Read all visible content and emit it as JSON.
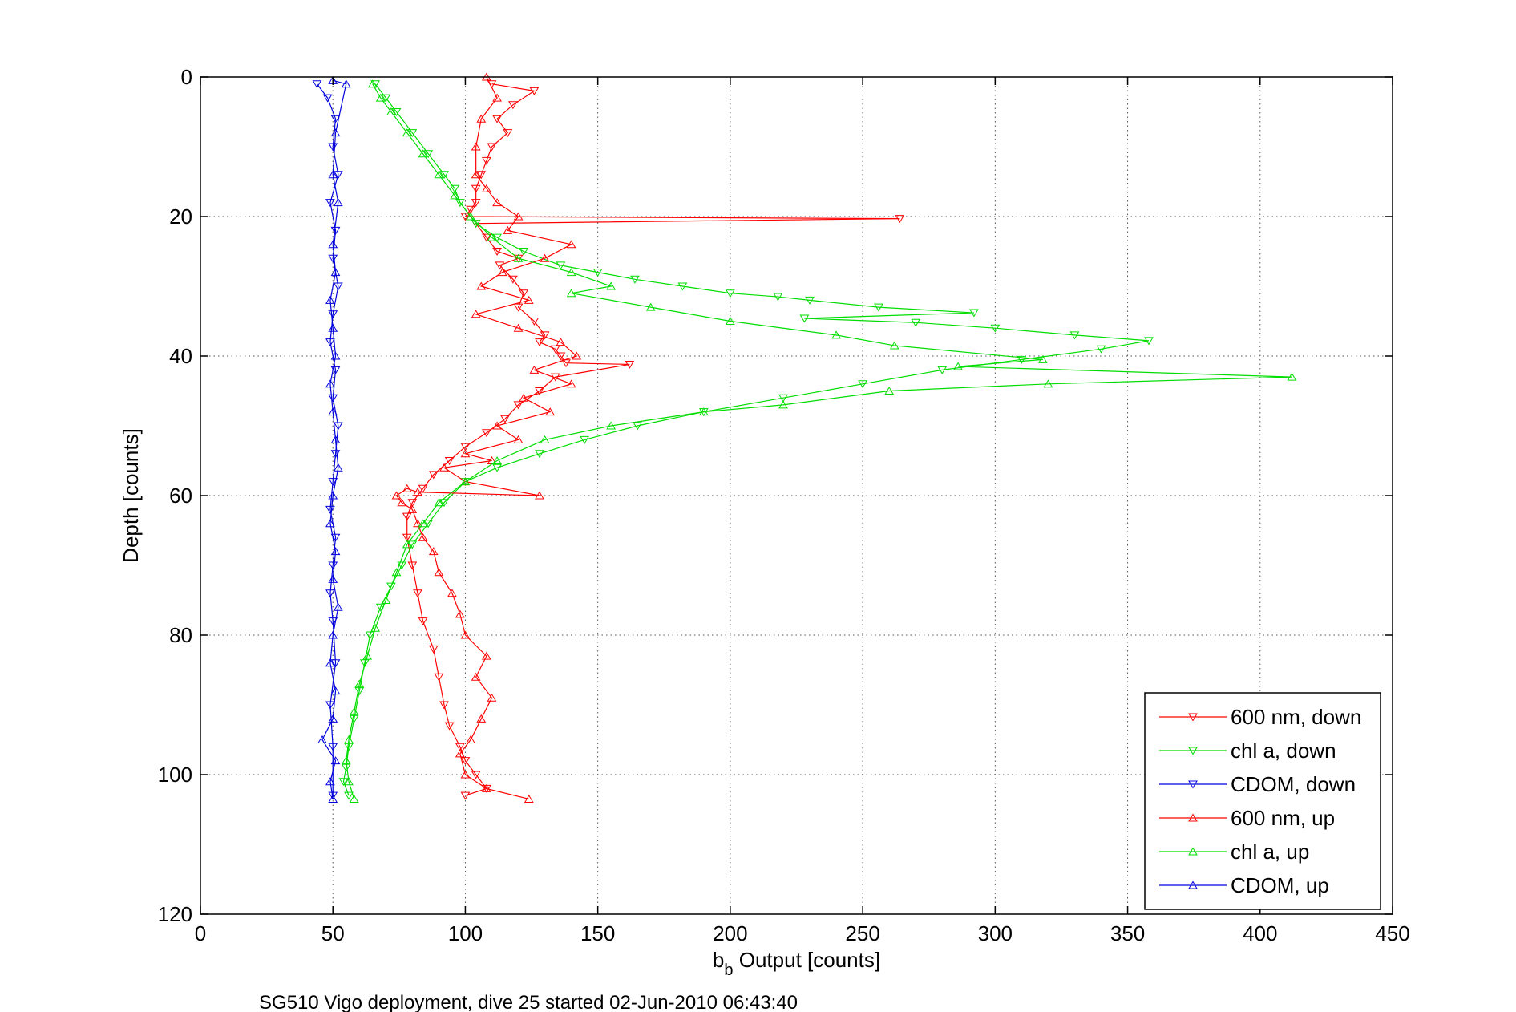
{
  "chart_data": {
    "type": "line",
    "xlabel_main": "b",
    "xlabel_sub": "b",
    "xlabel_rest": " Output [counts]",
    "ylabel": "Depth [counts]",
    "caption": "SG510 Vigo deployment, dive 25 started 02-Jun-2010 06:43:40",
    "xlim": [
      0,
      450
    ],
    "ylim": [
      0,
      120
    ],
    "y_reversed": true,
    "grid": true,
    "legend_position": "bottom-right",
    "xticks": [
      "0",
      "50",
      "100",
      "150",
      "200",
      "250",
      "300",
      "350",
      "400",
      "450"
    ],
    "yticks": [
      "0",
      "20",
      "40",
      "60",
      "80",
      "100",
      "120"
    ],
    "series": [
      {
        "name": "600 nm, down",
        "color": "#ff0000",
        "marker": "triangle-down",
        "x": [
          110,
          126,
          118,
          112,
          116,
          110,
          108,
          106,
          104,
          104,
          102,
          100,
          264,
          104,
          108,
          112,
          120,
          113,
          118,
          122,
          120,
          126,
          130,
          128,
          134,
          136,
          138,
          162,
          134,
          128,
          120,
          115,
          108,
          100,
          94,
          88,
          84,
          80,
          78,
          78,
          80,
          82,
          84,
          88,
          90,
          92,
          94,
          98,
          100,
          104,
          108,
          100
        ],
        "y": [
          1,
          2,
          4,
          6,
          8,
          10,
          12,
          14,
          16,
          18,
          19,
          20,
          20.3,
          21,
          23,
          25,
          26,
          27,
          29,
          31,
          33,
          35,
          37,
          38,
          39,
          40,
          41,
          41.2,
          43,
          45,
          47,
          49,
          51,
          53,
          55,
          57,
          59,
          61,
          63,
          66,
          70,
          74,
          78,
          82,
          86,
          90,
          93,
          96,
          98,
          100,
          102,
          103
        ]
      },
      {
        "name": "chl a, down",
        "color": "#00dd00",
        "marker": "triangle-down",
        "x": [
          66,
          70,
          74,
          80,
          86,
          92,
          96,
          98,
          104,
          112,
          122,
          136,
          150,
          164,
          182,
          200,
          218,
          230,
          256,
          292,
          228,
          270,
          300,
          330,
          358,
          340,
          310,
          280,
          250,
          220,
          190,
          165,
          145,
          128,
          112,
          100,
          92,
          86,
          80,
          76,
          72,
          68,
          64,
          62,
          60,
          58,
          56,
          55,
          54,
          56
        ],
        "y": [
          1,
          3,
          5,
          8,
          11,
          14,
          16,
          18,
          21,
          23,
          25,
          27,
          28,
          29,
          30,
          31,
          31.5,
          32,
          33,
          33.8,
          34.6,
          35.2,
          36,
          37,
          37.8,
          39,
          40.5,
          42,
          44,
          46,
          48,
          50,
          52,
          54,
          56,
          58,
          61,
          64,
          67,
          70,
          73,
          76,
          80,
          84,
          88,
          92,
          96,
          99,
          101,
          103
        ]
      },
      {
        "name": "CDOM, down",
        "color": "#0000dd",
        "marker": "triangle-down",
        "x": [
          44,
          48,
          51,
          50,
          52,
          49,
          51,
          50,
          52,
          50,
          49,
          51,
          50,
          52,
          51,
          50,
          49,
          51,
          50,
          49,
          50,
          51,
          49,
          50,
          50
        ],
        "y": [
          1,
          3,
          6,
          10,
          14,
          18,
          22,
          26,
          30,
          34,
          38,
          42,
          46,
          50,
          54,
          58,
          62,
          66,
          70,
          74,
          78,
          84,
          90,
          96,
          103
        ]
      },
      {
        "name": "600 nm, up",
        "color": "#ff0000",
        "marker": "triangle-up",
        "x": [
          124,
          108,
          100,
          98,
          102,
          106,
          110,
          104,
          108,
          100,
          98,
          95,
          90,
          88,
          84,
          82,
          80,
          76,
          74,
          78,
          82,
          128,
          100,
          92,
          110,
          100,
          120,
          112,
          132,
          122,
          140,
          126,
          142,
          136,
          120,
          104,
          124,
          106,
          114,
          130,
          140,
          116,
          120,
          112,
          108,
          104,
          104,
          106,
          112,
          108
        ],
        "y": [
          103.5,
          102,
          100,
          97,
          95,
          92,
          89,
          86,
          83,
          80,
          77,
          74,
          71,
          68,
          66,
          64,
          62,
          61,
          60,
          59,
          59.5,
          60,
          58,
          56,
          55,
          54,
          52,
          50,
          48,
          46,
          44,
          42,
          40,
          38,
          36,
          34,
          32,
          30,
          28,
          26,
          24,
          22,
          20,
          18,
          16,
          14,
          10,
          6,
          3,
          0
        ]
      },
      {
        "name": "chl a, up",
        "color": "#00dd00",
        "marker": "triangle-up",
        "x": [
          58,
          56,
          55,
          56,
          58,
          60,
          63,
          66,
          70,
          74,
          78,
          84,
          90,
          100,
          112,
          130,
          155,
          190,
          220,
          260,
          320,
          412,
          286,
          318,
          262,
          240,
          200,
          170,
          140,
          155,
          140,
          120,
          110,
          102,
          96,
          90,
          84,
          78,
          72,
          68,
          65
        ],
        "y": [
          103.5,
          101,
          98,
          95,
          91,
          87,
          83,
          79,
          75,
          71,
          67,
          64,
          61,
          58,
          55,
          52,
          50,
          48,
          47,
          45,
          44,
          43,
          41.5,
          40.5,
          38.5,
          37,
          35,
          33,
          31,
          30,
          28,
          26,
          23,
          20,
          17,
          14,
          11,
          8,
          5,
          3,
          1
        ]
      },
      {
        "name": "CDOM, up",
        "color": "#0000dd",
        "marker": "triangle-up",
        "x": [
          50,
          49,
          51,
          46,
          50,
          51,
          49,
          50,
          52,
          50,
          51,
          49,
          50,
          52,
          51,
          50,
          49,
          51,
          50,
          49,
          51,
          50,
          52,
          50,
          51,
          55,
          50
        ],
        "y": [
          103.5,
          101,
          98,
          95,
          92,
          88,
          84,
          80,
          76,
          72,
          68,
          64,
          60,
          56,
          52,
          48,
          44,
          40,
          36,
          32,
          28,
          24,
          18,
          14,
          8,
          1,
          0.5
        ]
      }
    ]
  }
}
